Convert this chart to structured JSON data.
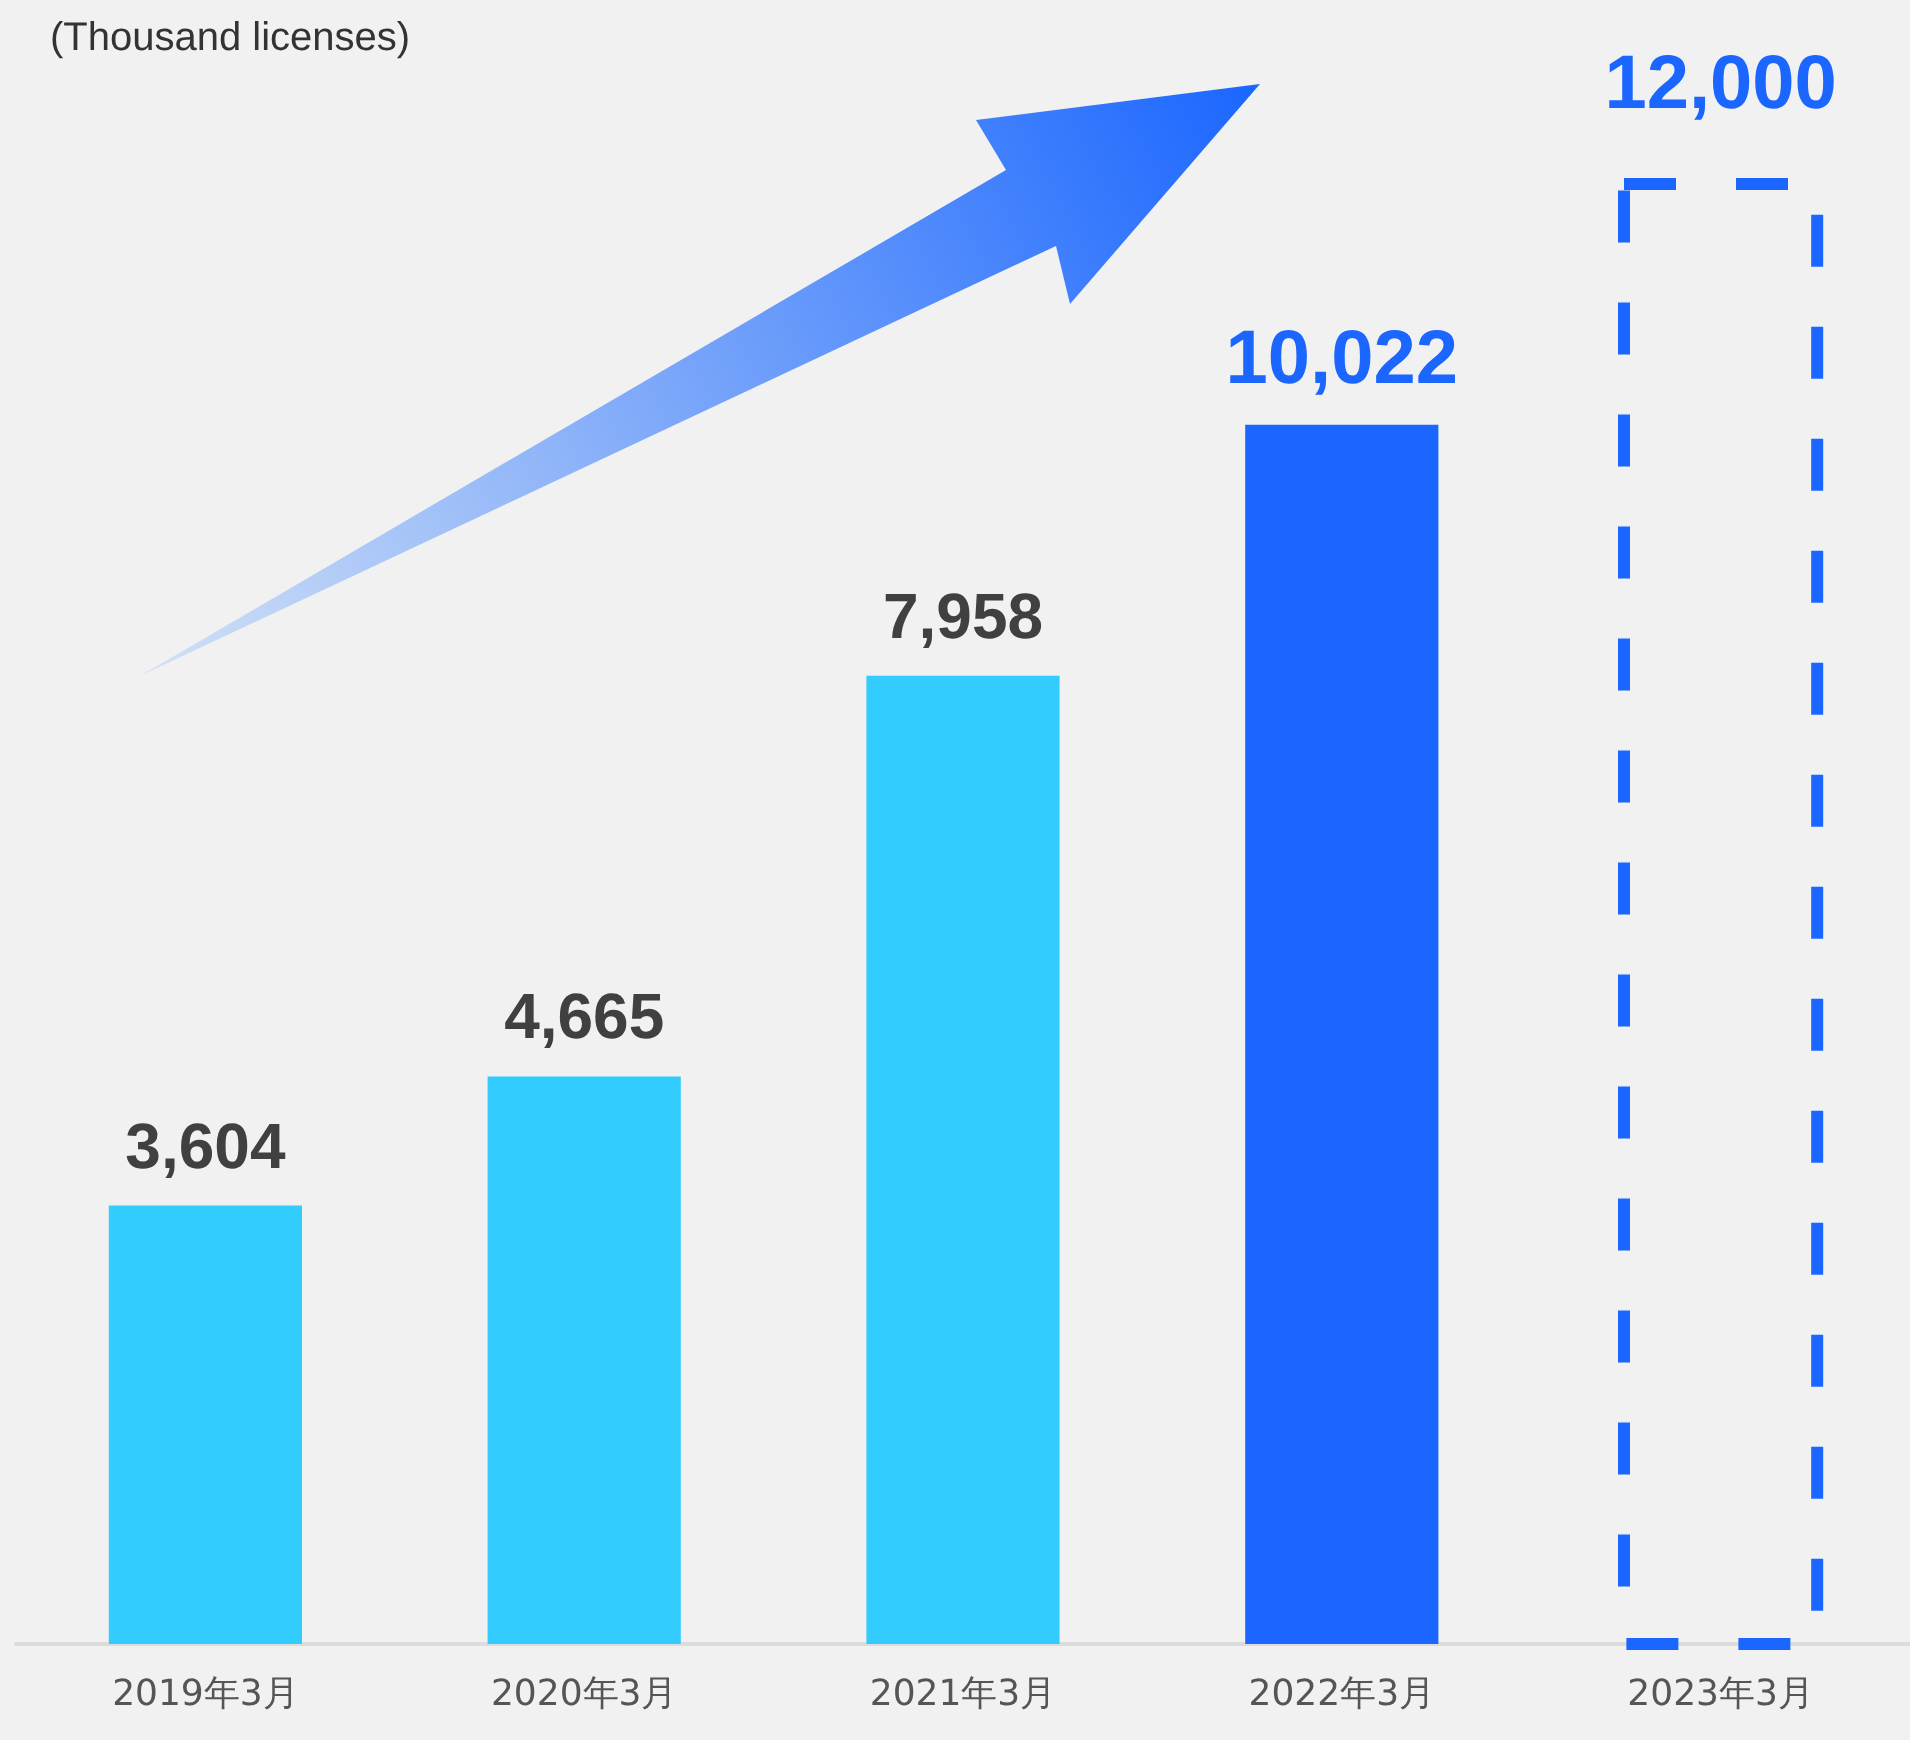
{
  "chart_data": {
    "type": "bar",
    "ylabel": "(Thousand licenses)",
    "categories": [
      "2019年3月",
      "2020年3月",
      "2021年3月",
      "2022年3月",
      "2023年3月"
    ],
    "series": [
      {
        "values": [
          3604,
          4665,
          7958,
          10022,
          null
        ],
        "value_labels": [
          "3,604",
          "4,665",
          "7,958",
          "10,022",
          null
        ],
        "colors": [
          "#33ccff",
          "#33ccff",
          "#33ccff",
          "#1a66ff",
          null
        ]
      },
      {
        "values": [
          null,
          null,
          null,
          null,
          12000
        ],
        "value_labels": [
          null,
          null,
          null,
          null,
          "12,000"
        ],
        "color": "#1a66ff",
        "line_style": "dashed"
      }
    ]
  }
}
